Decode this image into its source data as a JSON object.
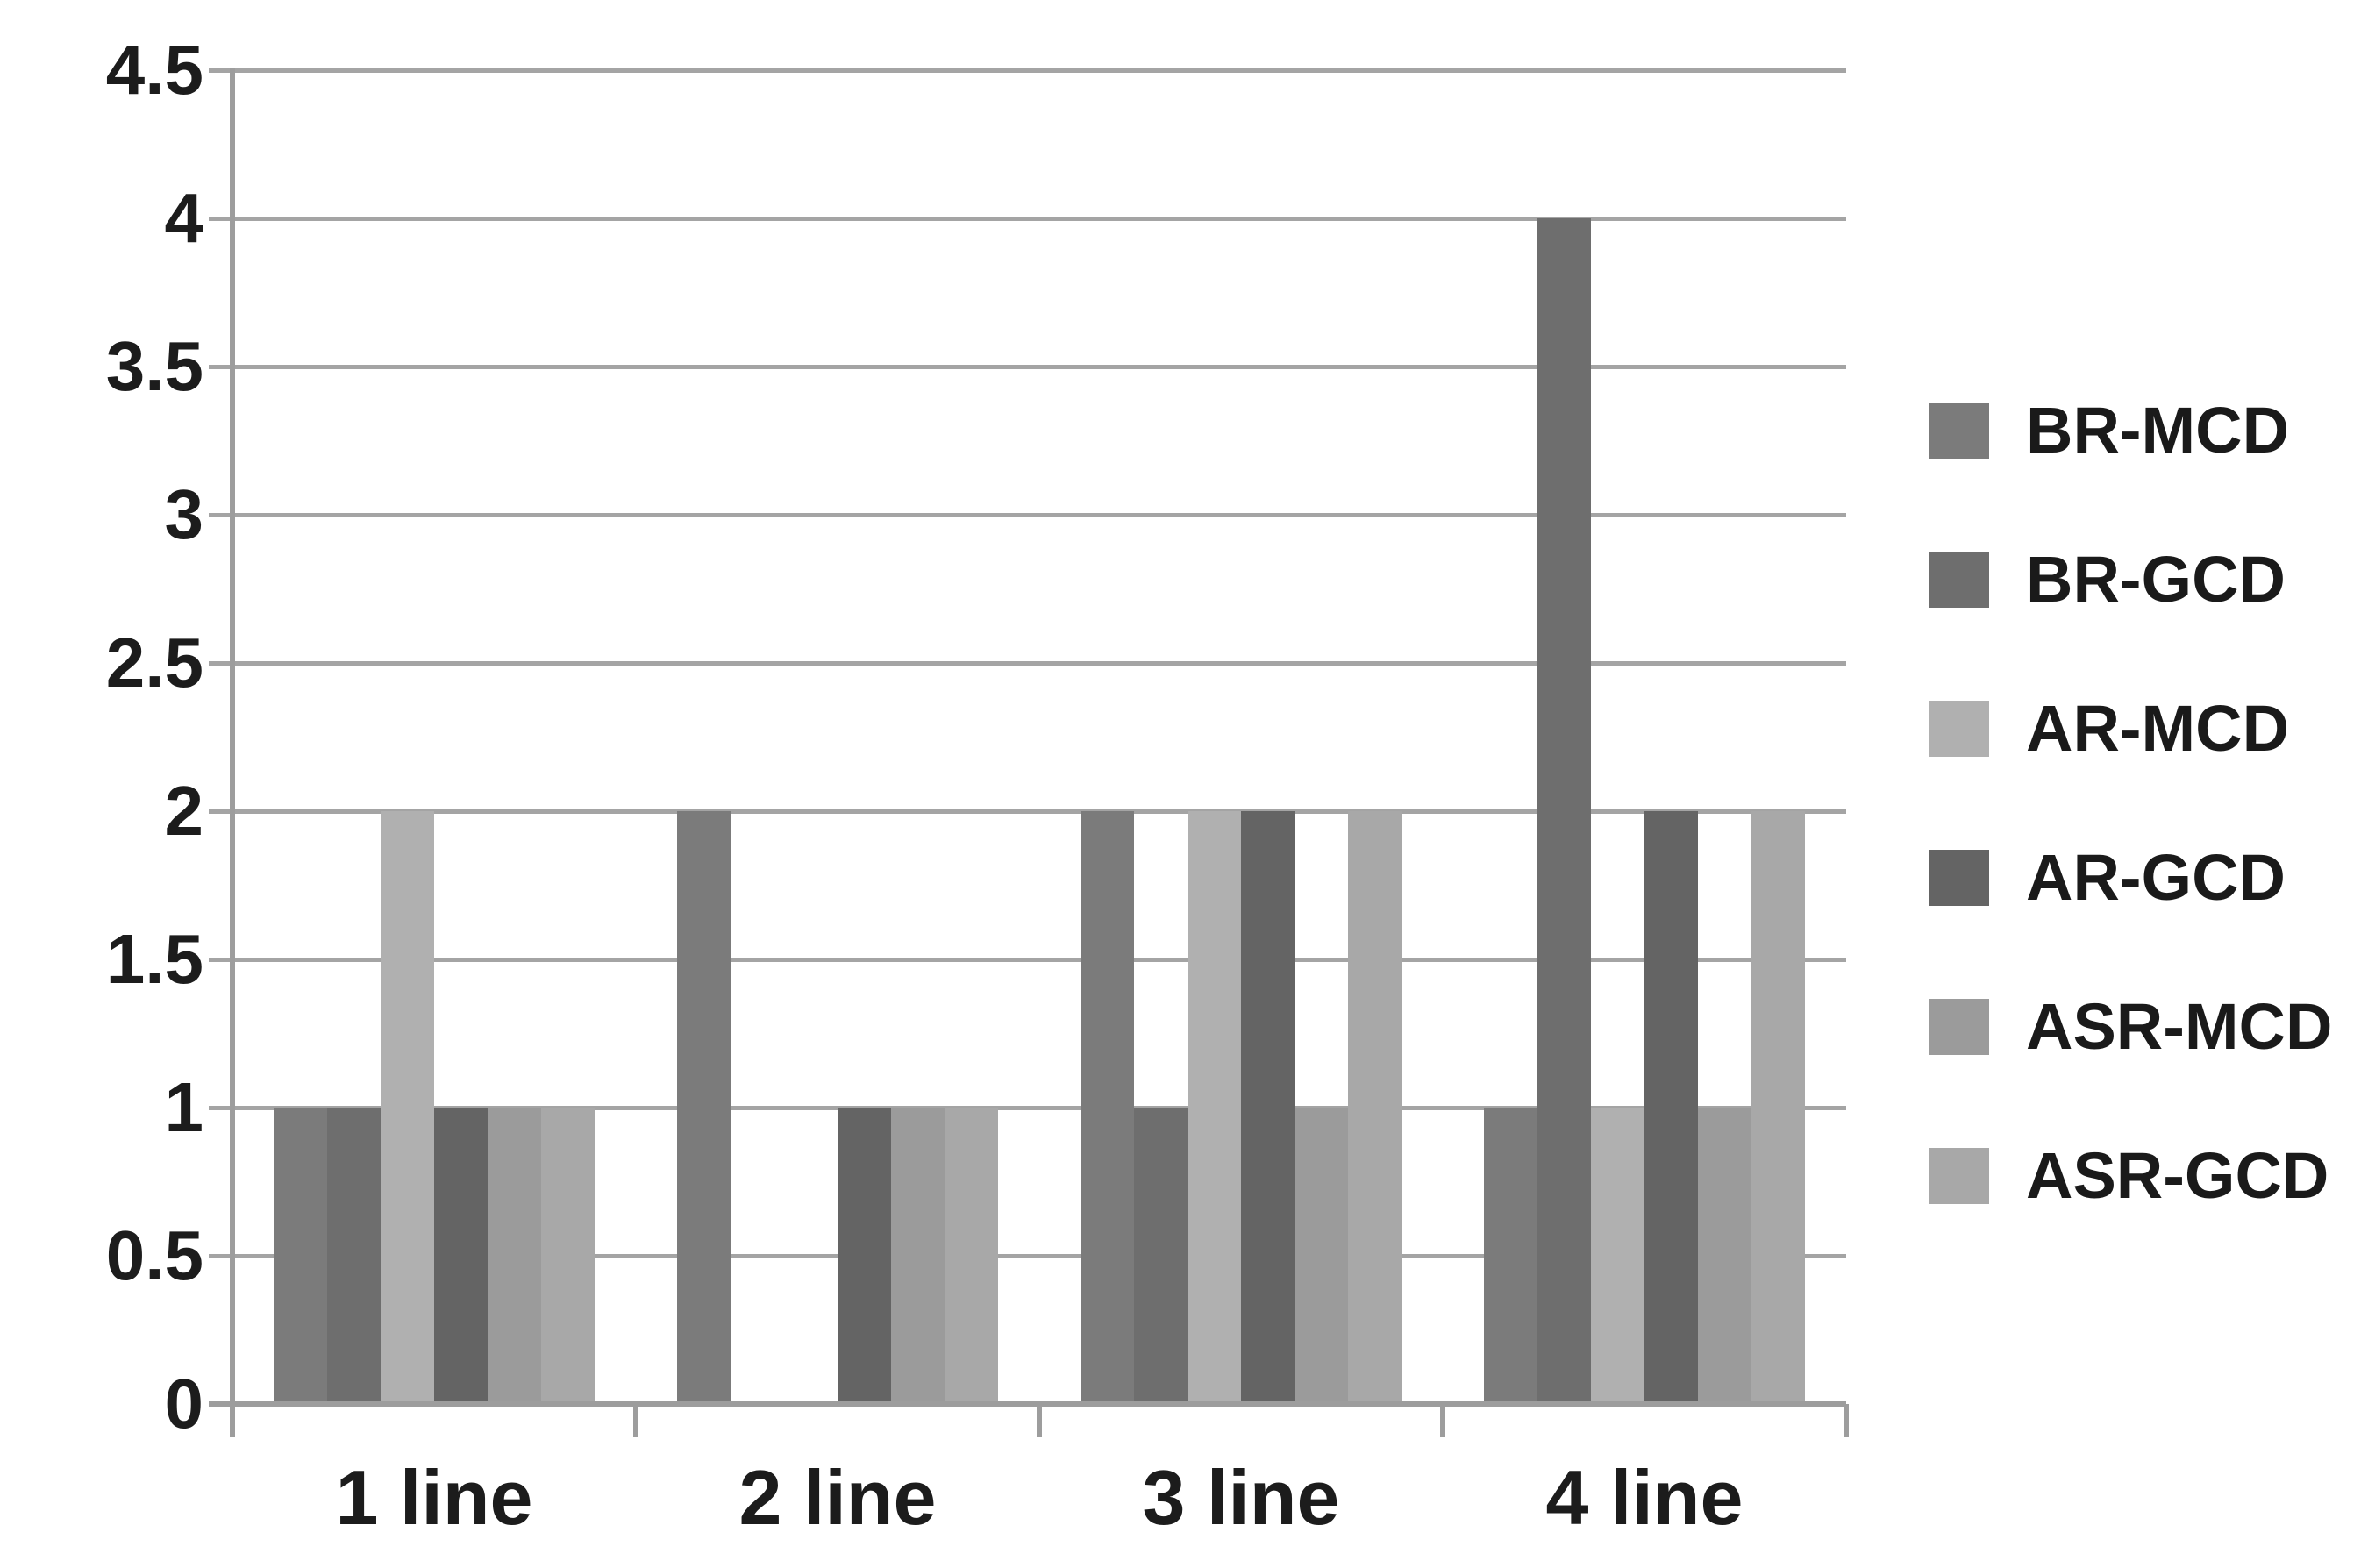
{
  "chart_data": {
    "type": "bar",
    "title": "",
    "xlabel": "",
    "ylabel": "",
    "categories": [
      "1 line",
      "2 line",
      "3 line",
      "4 line"
    ],
    "series": [
      {
        "name": "BR-MCD",
        "color": "#7b7b7b",
        "values": [
          1,
          2,
          2,
          1
        ]
      },
      {
        "name": "BR-GCD",
        "color": "#6e6e6e",
        "values": [
          1,
          0,
          1,
          4
        ]
      },
      {
        "name": "AR-MCD",
        "color": "#b0b0b0",
        "values": [
          2,
          0,
          2,
          1
        ]
      },
      {
        "name": "AR-GCD",
        "color": "#646464",
        "values": [
          1,
          1,
          2,
          2
        ]
      },
      {
        "name": "ASR-MCD",
        "color": "#9b9b9b",
        "values": [
          1,
          1,
          1,
          1
        ]
      },
      {
        "name": "ASR-GCD",
        "color": "#a8a8a8",
        "values": [
          1,
          1,
          2,
          2
        ]
      }
    ],
    "ylim": [
      0,
      4.5
    ],
    "ytick_step": 0.5,
    "ytick_labels": [
      "0",
      "0.5",
      "1",
      "1.5",
      "2",
      "2.5",
      "3",
      "3.5",
      "4",
      "4.5"
    ],
    "grid": true,
    "legend_position": "right"
  },
  "colors": {
    "background": "#ffffff",
    "gridline": "#a4a4a4",
    "axis": "#9d9d9d",
    "text": "#1c1c1c"
  }
}
